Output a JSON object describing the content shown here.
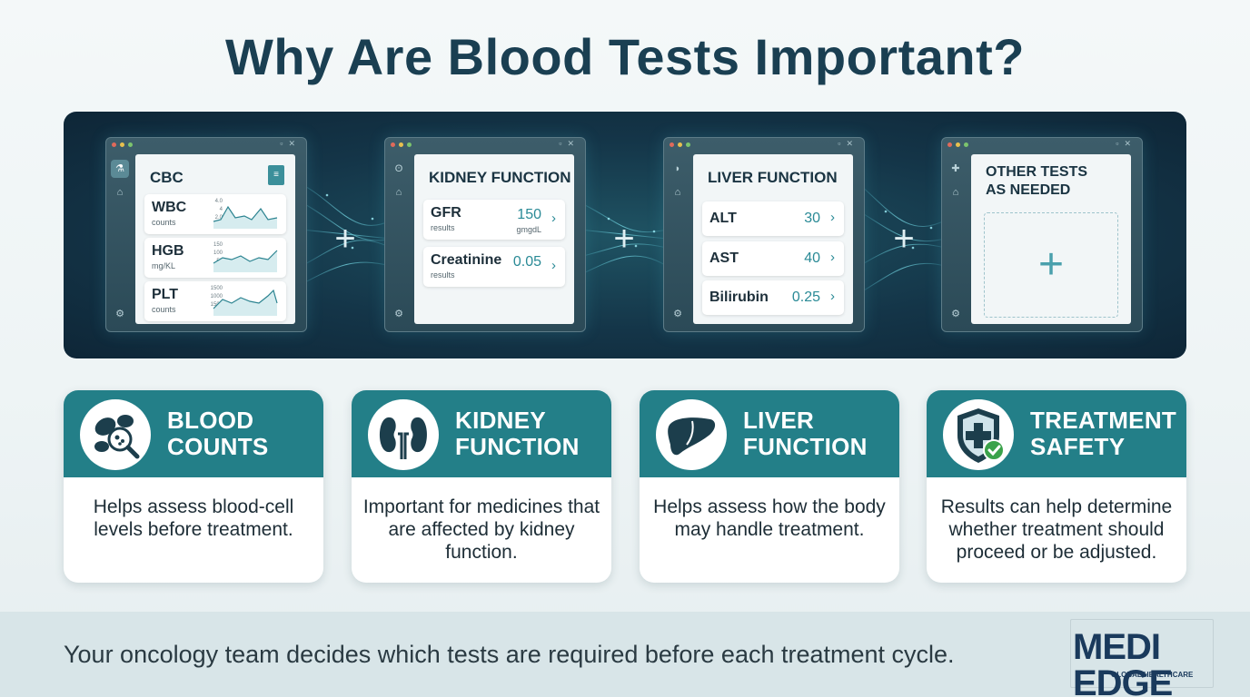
{
  "title": "Why Are Blood Tests Important?",
  "panel": {
    "windows": [
      {
        "title": "CBC",
        "rows": [
          {
            "label": "WBC",
            "sub": "counts",
            "ticks": [
              "4.0",
              "4",
              "2.0",
              "0"
            ]
          },
          {
            "label": "HGB",
            "sub": "mg/KL",
            "ticks": [
              "150",
              "100",
              "50",
              "0"
            ]
          },
          {
            "label": "PLT",
            "sub": "counts",
            "ticks": [
              "1500",
              "1000",
              "1500",
              "0"
            ]
          }
        ]
      },
      {
        "title": "KIDNEY FUNCTION",
        "rows": [
          {
            "label": "GFR",
            "sub": "results",
            "value": "150",
            "unit": "gmgdL"
          },
          {
            "label": "Creatinine",
            "sub": "results",
            "value": "0.05"
          }
        ]
      },
      {
        "title": "LIVER FUNCTION",
        "rows": [
          {
            "label": "ALT",
            "value": "30"
          },
          {
            "label": "AST",
            "value": "40"
          },
          {
            "label": "Bilirubin",
            "value": "0.25"
          }
        ]
      },
      {
        "title_line1": "OTHER TESTS",
        "title_line2": "AS NEEDED"
      }
    ],
    "separator": "+"
  },
  "cards": [
    {
      "title_line1": "BLOOD",
      "title_line2": "COUNTS",
      "body": "Helps assess blood-cell levels before treatment.",
      "icon": "blood-cells-magnifier-icon"
    },
    {
      "title_line1": "KIDNEY",
      "title_line2": "FUNCTION",
      "body": "Important for medicines that are affected by kidney function.",
      "icon": "kidneys-icon"
    },
    {
      "title_line1": "LIVER",
      "title_line2": "FUNCTION",
      "body": "Helps assess how the body may handle treatment.",
      "icon": "liver-icon"
    },
    {
      "title_line1": "TREATMENT",
      "title_line2": "SAFETY",
      "body": "Results can help determine whether treatment should proceed or be adjusted.",
      "icon": "shield-check-icon"
    }
  ],
  "footer": {
    "text": "Your oncology team decides which tests are required before each treatment cycle.",
    "logo_main": "MEDI EDGE",
    "logo_sub": "GLOBAL HEALTHCARE"
  },
  "colors": {
    "title": "#1a3f52",
    "panel": "#143548",
    "card_header": "#237f88",
    "accent": "#2a8a96",
    "logo": "#1a3a5c"
  }
}
